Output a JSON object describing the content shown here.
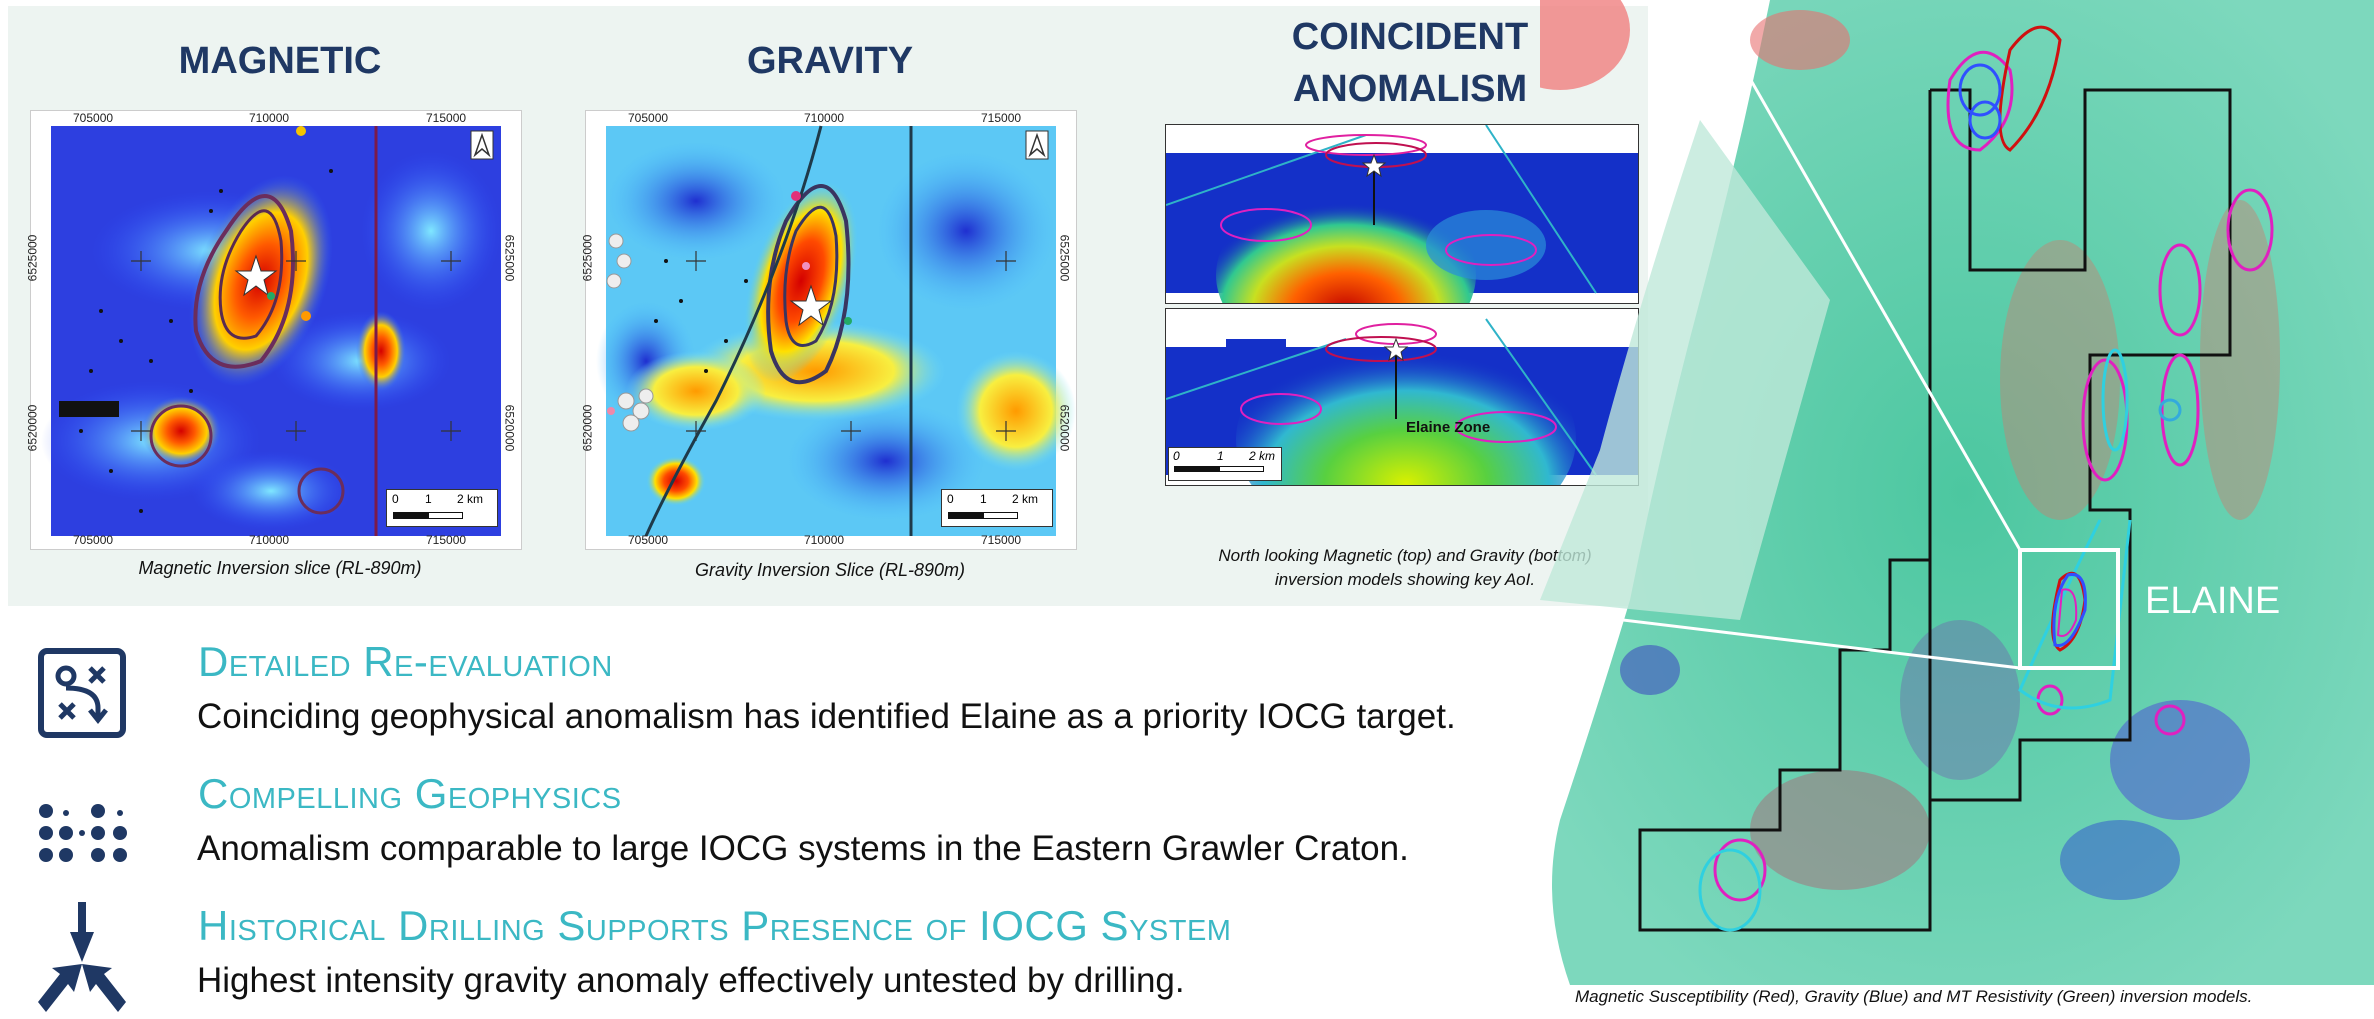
{
  "panels": {
    "magnetic": {
      "title": "MAGNETIC",
      "caption": "Magnetic Inversion slice (RL-890m)",
      "x_ticks": [
        "705000",
        "710000",
        "715000"
      ],
      "y_ticks_left": [
        "6525000",
        "6520000"
      ],
      "y_ticks_right": [
        "6525000",
        "6520000"
      ],
      "scale": [
        "0",
        "1",
        "2 km"
      ]
    },
    "gravity": {
      "title": "GRAVITY",
      "caption": "Gravity Inversion Slice (RL-890m)",
      "x_ticks": [
        "705000",
        "710000",
        "715000"
      ],
      "y_ticks_left": [
        "6525000",
        "6520000"
      ],
      "y_ticks_right": [
        "6525000",
        "6520000"
      ],
      "scale": [
        "0",
        "1",
        "2 km"
      ]
    },
    "coincident": {
      "title_line1": "COINCIDENT",
      "title_line2": "ANOMALISM",
      "caption_line1": "North looking Magnetic (top) and Gravity (bottom)",
      "caption_line2": "inversion models showing key AoI.",
      "zone_label": "Elaine Zone",
      "scale": [
        "0",
        "1",
        "2 km"
      ]
    }
  },
  "sections": [
    {
      "icon": "map-route-icon",
      "title": "Detailed Re-evaluation",
      "body": "Coinciding geophysical anomalism has identified Elaine as a priority IOCG target."
    },
    {
      "icon": "dots-pattern-icon",
      "title": "Compelling Geophysics",
      "body": "Anomalism comparable to large IOCG systems in the Eastern Grawler Craton."
    },
    {
      "icon": "converging-arrows-icon",
      "title": "Historical Drilling Supports Presence of IOCG System",
      "body": "Highest intensity gravity anomaly effectively untested by drilling."
    }
  ],
  "model3d": {
    "label": "ELAINE",
    "caption": "Magnetic Susceptibility (Red), Gravity (Blue) and MT Resistivity (Green) inversion models."
  },
  "colors": {
    "title_navy": "#1f3864",
    "section_teal": "#3bb8c4",
    "model_green": "#5cc9a5"
  }
}
